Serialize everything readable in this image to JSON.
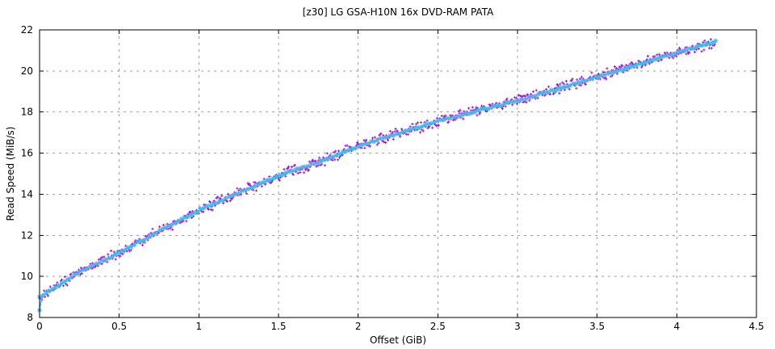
{
  "page": {
    "background": "#ffffff"
  },
  "chart_data": {
    "type": "scatter",
    "title": "[z30] LG GSA-H10N 16x DVD-RAM PATA",
    "xlabel": "Offset (GiB)",
    "ylabel": "Read Speed (MiB/s)",
    "xlim": [
      0,
      4.5
    ],
    "ylim": [
      8,
      22
    ],
    "xticks": [
      0,
      0.5,
      1,
      1.5,
      2,
      2.5,
      3,
      3.5,
      4,
      4.5
    ],
    "xtick_labels": [
      "0",
      "0.5",
      "1",
      "1.5",
      "2",
      "2.5",
      "3",
      "3.5",
      "4",
      "4.5"
    ],
    "yticks": [
      8,
      10,
      12,
      14,
      16,
      18,
      20,
      22
    ],
    "ytick_labels": [
      "8",
      "10",
      "12",
      "14",
      "16",
      "18",
      "20",
      "22"
    ],
    "grid": {
      "shown": true,
      "color": "#9e9e9e",
      "style": "dashed"
    },
    "border_color": "#000000",
    "legend": "none",
    "x_end": 4.243,
    "curve_anchors": {
      "x": [
        0,
        0.25,
        0.5,
        0.75,
        1.0,
        1.25,
        1.5,
        1.75,
        2.0,
        2.25,
        2.5,
        2.75,
        3.0,
        3.25,
        3.5,
        3.75,
        4.0,
        4.12,
        4.243
      ],
      "y": [
        9.0,
        10.2,
        11.15,
        12.2,
        13.2,
        14.05,
        14.9,
        15.55,
        16.35,
        16.95,
        17.55,
        18.05,
        18.55,
        19.12,
        19.7,
        20.3,
        20.9,
        21.15,
        21.42
      ]
    },
    "series": [
      {
        "name": "raw-read-speed-samples",
        "marker": "plus",
        "color": "#9a1fc9",
        "noise_amplitude": 0.15,
        "sample_count": 880
      },
      {
        "name": "smoothed-read-speed",
        "marker": "asterisk",
        "color": "#4fb4ec",
        "noise_amplitude": 0.03,
        "sample_count": 215,
        "line": true,
        "lead_in_point": {
          "x": 0.0,
          "y": 8.35
        }
      }
    ]
  }
}
